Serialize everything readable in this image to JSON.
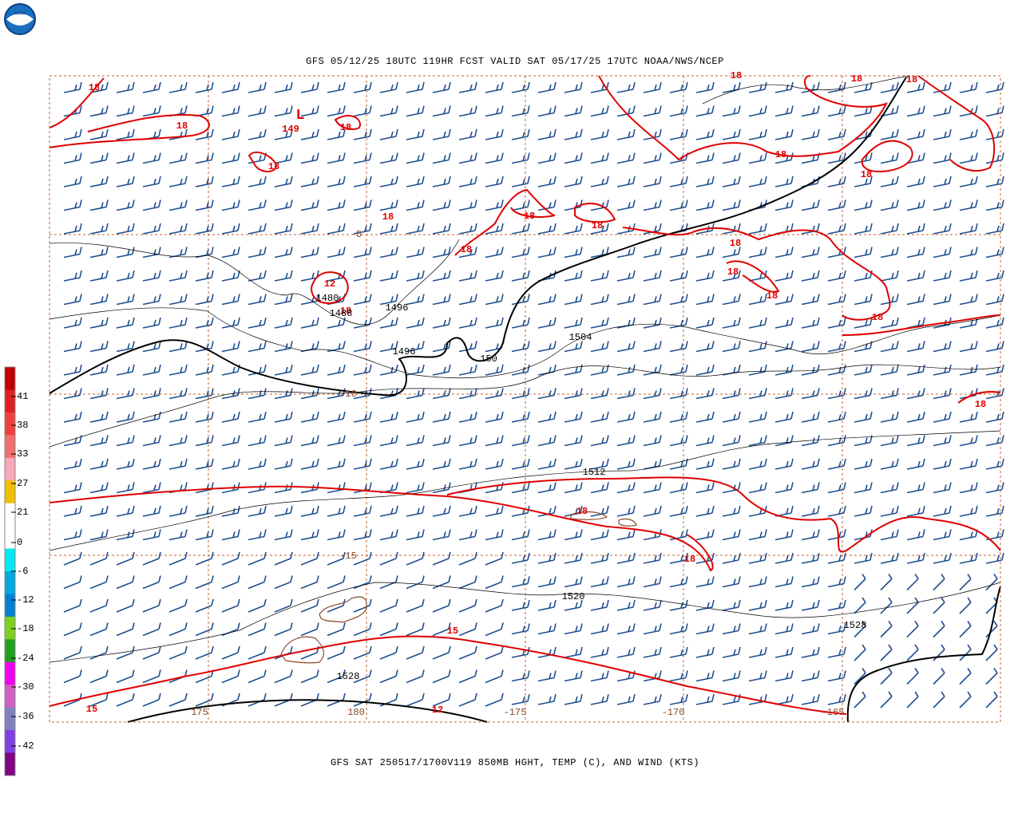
{
  "logo": {
    "text": "NOAA"
  },
  "header": {
    "title": "GFS 05/12/25 18UTC 119HR FCST VALID SAT 05/17/25 17UTC NOAA/NWS/NCEP"
  },
  "footer": {
    "caption": "GFS SAT 250517/1700V119 850MB HGHT, TEMP (C), AND WIND (KTS)"
  },
  "colorbar": {
    "labels": [
      "41",
      "38",
      "33",
      "27",
      "21",
      "0",
      "-6",
      "-12",
      "-18",
      "-24",
      "-30",
      "-36",
      "-42"
    ]
  },
  "map": {
    "low_marker": "L",
    "temperature_labels": [
      "18",
      "18",
      "18",
      "18",
      "18",
      "18",
      "18",
      "18",
      "18",
      "18",
      "18",
      "18",
      "18",
      "18",
      "18",
      "18",
      "18",
      "18",
      "18",
      "18",
      "15",
      "15",
      "12",
      "12",
      "18"
    ],
    "height_labels": [
      "149",
      "1496",
      "1496",
      "150",
      "1504",
      "1488",
      "1480",
      "1512",
      "1520",
      "1528",
      "1528"
    ],
    "coordinate_labels": [
      "-5",
      "-10",
      "-15",
      "175",
      "180",
      "-175",
      "-170",
      "-165"
    ]
  }
}
